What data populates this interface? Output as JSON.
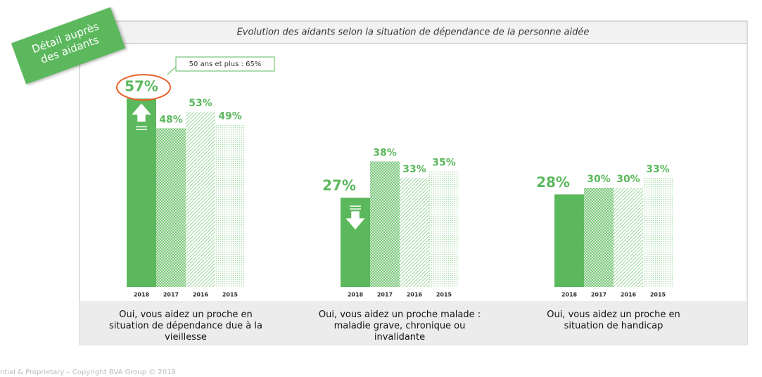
{
  "title": "Evolution des aidants selon la situation de dépendance de la personne aidée",
  "badge": [
    "Détail auprès",
    "des aidants"
  ],
  "footer": "ntial & Proprietary – Copyright BVA Group © 2018",
  "chart_data": {
    "type": "bar",
    "categories": [
      "Oui, vous aidez un proche en situation de dépendance due à la vieillesse",
      "Oui, vous aidez un proche malade : maladie grave, chronique ou invalidante",
      "Oui, vous aidez un proche en situation de handicap"
    ],
    "annotation": "50 ans et plus : 65%",
    "series": [
      {
        "name": "2018",
        "color": "#5cb85c",
        "values": [
          57,
          27,
          28
        ],
        "value_labels": [
          "57%",
          "27%",
          "28%"
        ]
      },
      {
        "name": "2017",
        "color": "#7cc77c",
        "values": [
          48,
          38,
          30
        ],
        "value_labels": [
          "48%",
          "38%",
          "30%"
        ]
      },
      {
        "name": "2016",
        "color": "#9ad49a",
        "values": [
          53,
          33,
          30
        ],
        "value_labels": [
          "53%",
          "33%",
          "30%"
        ]
      },
      {
        "name": "2015",
        "color": "#a8dba8",
        "values": [
          49,
          35,
          33
        ],
        "value_labels": [
          "49%",
          "35%",
          "33%"
        ]
      }
    ]
  }
}
